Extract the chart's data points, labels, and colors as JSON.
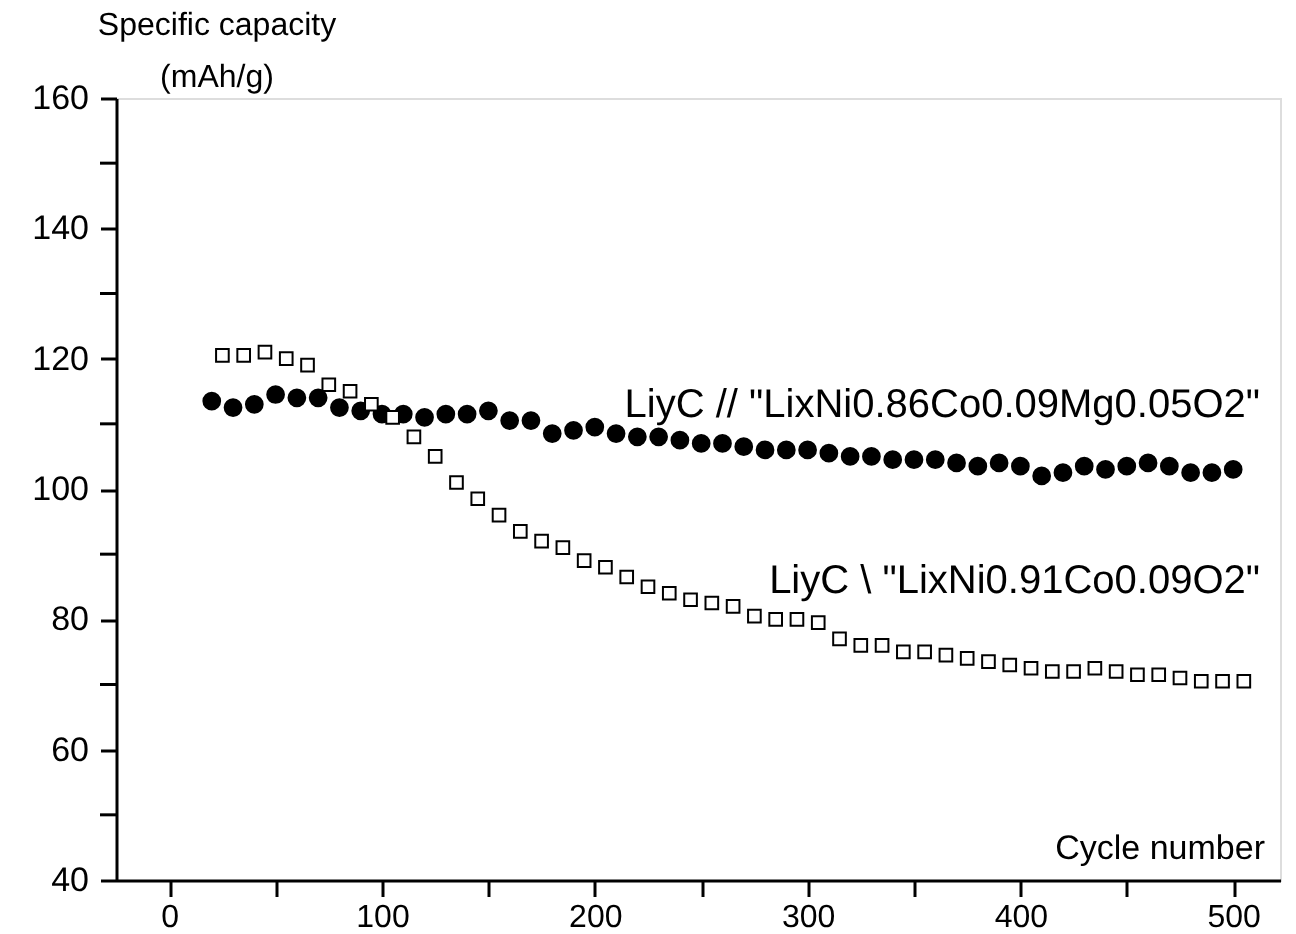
{
  "chart_data": {
    "type": "scatter",
    "xlabel": "Cycle number",
    "ylabel": "Specific capacity (mAh/g)",
    "xlim": [
      -25,
      522
    ],
    "ylim": [
      40,
      160
    ],
    "xticks": [
      0,
      {
        "value": 50,
        "label": null
      },
      100,
      {
        "value": 150,
        "label": null
      },
      200,
      {
        "value": 250,
        "label": null
      },
      300,
      {
        "value": 350,
        "label": null
      },
      400,
      {
        "value": 450,
        "label": null
      },
      500
    ],
    "yticks": [
      40,
      {
        "value": 50,
        "label": null
      },
      60,
      {
        "value": 70,
        "label": null
      },
      80,
      {
        "value": 90,
        "label": null
      },
      100,
      {
        "value": 110,
        "label": null
      },
      120,
      {
        "value": 130,
        "label": null
      },
      140,
      {
        "value": 150,
        "label": null
      },
      160
    ],
    "grid": false,
    "series": [
      {
        "name": "LiyC // \"LixNi0.86Co0.09Mg0.05O2\"",
        "color": "#000000",
        "marker": "circle",
        "x": [
          20,
          30,
          40,
          50,
          60,
          70,
          80,
          90,
          100,
          110,
          120,
          130,
          140,
          150,
          160,
          170,
          180,
          190,
          200,
          210,
          220,
          230,
          240,
          250,
          260,
          270,
          280,
          290,
          300,
          310,
          320,
          330,
          340,
          350,
          360,
          370,
          380,
          390,
          400,
          410,
          420,
          430,
          440,
          450,
          460,
          470,
          480,
          490,
          500
        ],
        "values": [
          113.5,
          112.5,
          113,
          114.5,
          114,
          114,
          112.5,
          112,
          111.5,
          111.5,
          111,
          111.5,
          111.5,
          112,
          110.5,
          110.5,
          108.5,
          109,
          109.5,
          108.5,
          108,
          108,
          107.5,
          107,
          107,
          106.5,
          106,
          106,
          106,
          105.5,
          105,
          105,
          104.5,
          104.5,
          104.5,
          104,
          103.5,
          104,
          103.5,
          102,
          102.5,
          103.5,
          103,
          103.5,
          104,
          103.5,
          102.5,
          102.5,
          103
        ]
      },
      {
        "name": "LiyC \\ \"LixNi0.91Co0.09O2\"",
        "color": "#000000",
        "marker": "square",
        "x": [
          25,
          35,
          45,
          55,
          65,
          75,
          85,
          95,
          105,
          115,
          125,
          135,
          145,
          155,
          165,
          175,
          185,
          195,
          205,
          215,
          225,
          235,
          245,
          255,
          265,
          275,
          285,
          295,
          305,
          315,
          325,
          335,
          345,
          355,
          365,
          375,
          385,
          395,
          405,
          415,
          425,
          435,
          445,
          455,
          465,
          475,
          485,
          495,
          505
        ],
        "values": [
          120.5,
          120.5,
          121,
          120,
          119,
          116,
          115,
          113,
          111,
          108,
          105,
          101,
          98.5,
          96,
          93.5,
          92,
          91,
          89,
          88,
          86.5,
          85,
          84,
          83,
          82.5,
          82,
          80.5,
          80,
          80,
          79.5,
          77,
          76,
          76,
          75,
          75,
          74.5,
          74,
          73.5,
          73,
          72.5,
          72,
          72,
          72.5,
          72,
          71.5,
          71.5,
          71,
          70.5,
          70.5,
          70.5
        ]
      }
    ]
  }
}
